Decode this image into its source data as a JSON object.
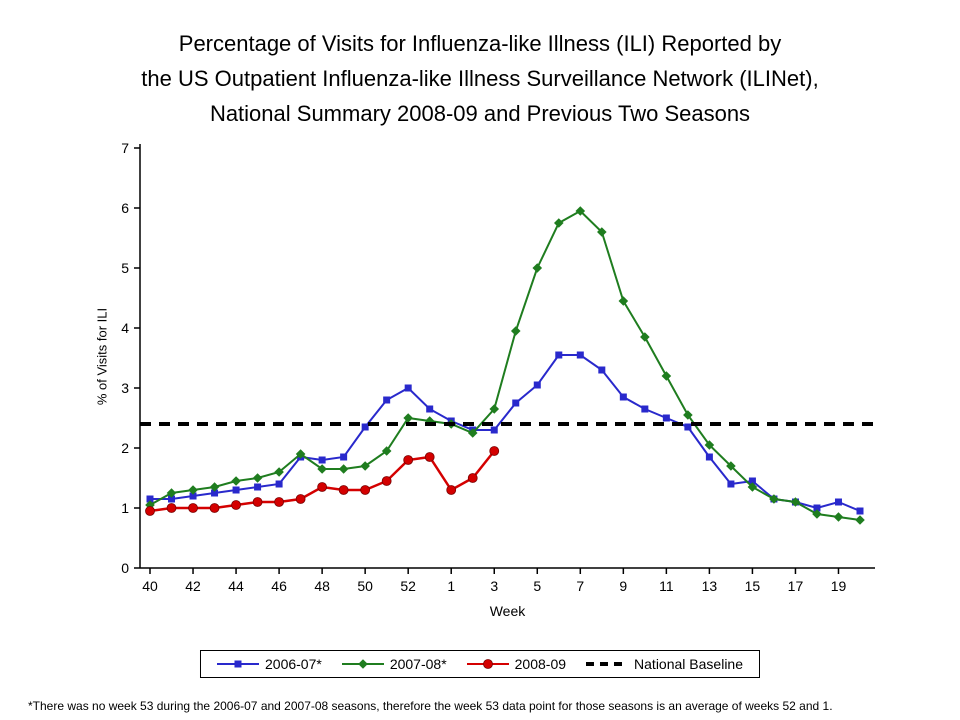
{
  "title": {
    "line1": "Percentage of Visits for Influenza-like Illness (ILI) Reported by",
    "line2": "the US Outpatient Influenza-like Illness Surveillance Network (ILINet),",
    "line3": "National Summary 2008-09 and Previous Two Seasons"
  },
  "footnote": "*There was no week 53 during the 2006-07 and 2007-08 seasons, therefore the week 53 data point for those seasons is an average of weeks 52 and 1.",
  "chart_data": {
    "type": "line",
    "title": "Percentage of Visits for Influenza-like Illness (ILI) Reported by the US Outpatient Influenza-like Illness Surveillance Network (ILINet), National Summary 2008-09 and Previous Two Seasons",
    "xlabel": "Week",
    "ylabel": "% of Visits for ILI",
    "ylim": [
      0,
      7
    ],
    "y_ticks": [
      0,
      1,
      2,
      3,
      4,
      5,
      6,
      7
    ],
    "grid": false,
    "legend_position": "bottom",
    "x_categories": [
      "40",
      "41",
      "42",
      "43",
      "44",
      "45",
      "46",
      "47",
      "48",
      "49",
      "50",
      "51",
      "52",
      "53",
      "1",
      "2",
      "3",
      "4",
      "5",
      "6",
      "7",
      "8",
      "9",
      "10",
      "11",
      "12",
      "13",
      "14",
      "15",
      "16",
      "17",
      "18",
      "19",
      "20"
    ],
    "x_tick_labels": [
      "40",
      "42",
      "44",
      "46",
      "48",
      "50",
      "52",
      "1",
      "3",
      "5",
      "7",
      "9",
      "11",
      "13",
      "15",
      "17",
      "19"
    ],
    "series": [
      {
        "name": "2006-07*",
        "color": "#2929CC",
        "marker": "square",
        "line_width": 2,
        "values": [
          1.15,
          1.15,
          1.2,
          1.25,
          1.3,
          1.35,
          1.4,
          1.85,
          1.8,
          1.85,
          2.35,
          2.8,
          3.0,
          2.65,
          2.45,
          2.3,
          2.3,
          2.75,
          3.05,
          3.55,
          3.55,
          3.3,
          2.85,
          2.65,
          2.5,
          2.35,
          1.85,
          1.4,
          1.45,
          1.15,
          1.1,
          1.0,
          1.1,
          0.95
        ]
      },
      {
        "name": "2007-08*",
        "color": "#1F7D1F",
        "marker": "diamond",
        "line_width": 2,
        "values": [
          1.05,
          1.25,
          1.3,
          1.35,
          1.45,
          1.5,
          1.6,
          1.9,
          1.65,
          1.65,
          1.7,
          1.95,
          2.5,
          2.45,
          2.4,
          2.25,
          2.65,
          3.95,
          5.0,
          5.75,
          5.95,
          5.6,
          4.45,
          3.85,
          3.2,
          2.55,
          2.05,
          1.7,
          1.35,
          1.15,
          1.1,
          0.9,
          0.85,
          0.8
        ]
      },
      {
        "name": "2008-09",
        "color": "#D40000",
        "marker": "circle",
        "line_width": 2.5,
        "values": [
          0.95,
          1.0,
          1.0,
          1.0,
          1.05,
          1.1,
          1.1,
          1.15,
          1.35,
          1.3,
          1.3,
          1.45,
          1.8,
          1.85,
          1.3,
          1.5,
          1.95,
          null,
          null,
          null,
          null,
          null,
          null,
          null,
          null,
          null,
          null,
          null,
          null,
          null,
          null,
          null,
          null,
          null
        ]
      },
      {
        "name": "National Baseline",
        "color": "#000000",
        "style": "dashed",
        "baseline_value": 2.4
      }
    ]
  }
}
